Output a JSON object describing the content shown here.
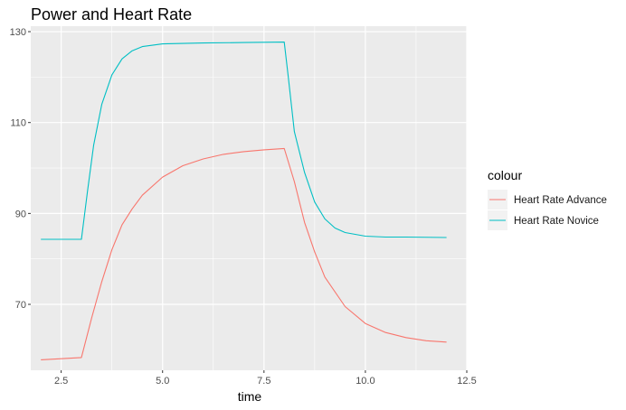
{
  "chart_data": {
    "type": "line",
    "title": "Power and Heart Rate",
    "xlabel": "time",
    "ylabel": "",
    "xlim": [
      1.75,
      12.5
    ],
    "ylim": [
      55.5,
      131.2
    ],
    "x_ticks": [
      2.5,
      5.0,
      7.5,
      10.0,
      12.5
    ],
    "x_tick_labels": [
      "2.5",
      "5.0",
      "7.5",
      "10.0",
      "12.5"
    ],
    "y_ticks": [
      70,
      90,
      110,
      130
    ],
    "y_tick_labels": [
      "70",
      "90",
      "110",
      "130"
    ],
    "grid": true,
    "legend": {
      "title": "colour",
      "position": "right"
    },
    "series": [
      {
        "name": "Heart Rate Advance",
        "color": "#F8766D",
        "x": [
          2.0,
          3.0,
          3.25,
          3.5,
          3.75,
          4.0,
          4.25,
          4.5,
          5.0,
          5.5,
          6.0,
          6.5,
          7.0,
          7.5,
          8.0,
          8.25,
          8.5,
          8.75,
          9.0,
          9.5,
          10.0,
          10.5,
          11.0,
          11.5,
          12.0
        ],
        "values": [
          57.8,
          58.3,
          67.0,
          75.0,
          82.0,
          87.5,
          91.0,
          94.0,
          98.0,
          100.5,
          102.0,
          103.0,
          103.6,
          104.0,
          104.3,
          97.0,
          88.0,
          81.5,
          76.0,
          69.5,
          65.8,
          63.8,
          62.7,
          62.0,
          61.7
        ]
      },
      {
        "name": "Heart Rate Novice",
        "color": "#00BFC4",
        "x": [
          2.0,
          3.0,
          3.15,
          3.3,
          3.5,
          3.75,
          4.0,
          4.25,
          4.5,
          5.0,
          6.0,
          7.0,
          8.0,
          8.1,
          8.25,
          8.5,
          8.75,
          9.0,
          9.25,
          9.5,
          10.0,
          10.5,
          11.0,
          12.0
        ],
        "values": [
          84.3,
          84.3,
          95.0,
          105.0,
          114.0,
          120.5,
          124.0,
          125.8,
          126.7,
          127.3,
          127.5,
          127.6,
          127.7,
          120.0,
          108.0,
          99.0,
          92.5,
          88.8,
          86.8,
          85.8,
          85.0,
          84.8,
          84.8,
          84.7
        ]
      }
    ]
  }
}
